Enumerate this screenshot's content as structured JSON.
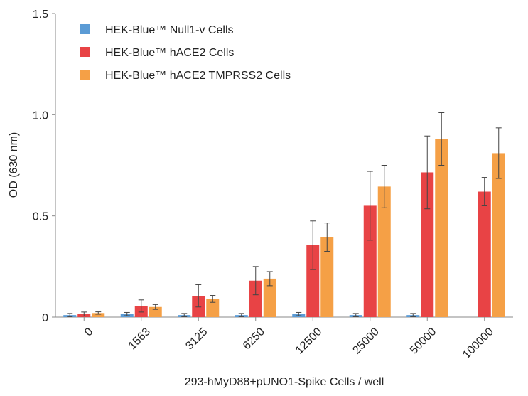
{
  "chart_data": {
    "type": "bar",
    "y_label": "OD (630 nm)",
    "x_label": "293-hMyD88+pUNO1-Spike Cells / well",
    "categories": [
      "0",
      "1563",
      "3125",
      "6250",
      "12500",
      "25000",
      "50000",
      "100000"
    ],
    "series": [
      {
        "name": "HEK-Blue™ Null1-v Cells",
        "color": "#5b9bd5",
        "values": [
          0.01,
          0.015,
          0.01,
          0.01,
          0.015,
          0.01,
          0.01,
          null
        ],
        "errors": [
          0.008,
          0.008,
          0.008,
          0.008,
          0.008,
          0.008,
          0.008,
          null
        ]
      },
      {
        "name": "HEK-Blue™ hACE2 Cells",
        "color": "#e84345",
        "values": [
          0.015,
          0.055,
          0.105,
          0.18,
          0.355,
          0.55,
          0.715,
          0.62
        ],
        "errors": [
          0.01,
          0.03,
          0.055,
          0.07,
          0.12,
          0.17,
          0.18,
          0.07
        ]
      },
      {
        "name": "HEK-Blue™ hACE2 TMPRSS2 Cells",
        "color": "#f5a046",
        "values": [
          0.02,
          0.05,
          0.09,
          0.19,
          0.395,
          0.645,
          0.88,
          0.81
        ],
        "errors": [
          0.006,
          0.012,
          0.017,
          0.035,
          0.07,
          0.105,
          0.13,
          0.125
        ]
      }
    ],
    "ylim": [
      0,
      1.5
    ],
    "yticks": [
      0,
      0.5,
      {
        "value": 1,
        "label": "1.0"
      },
      1.5
    ],
    "legend": "upper left"
  }
}
